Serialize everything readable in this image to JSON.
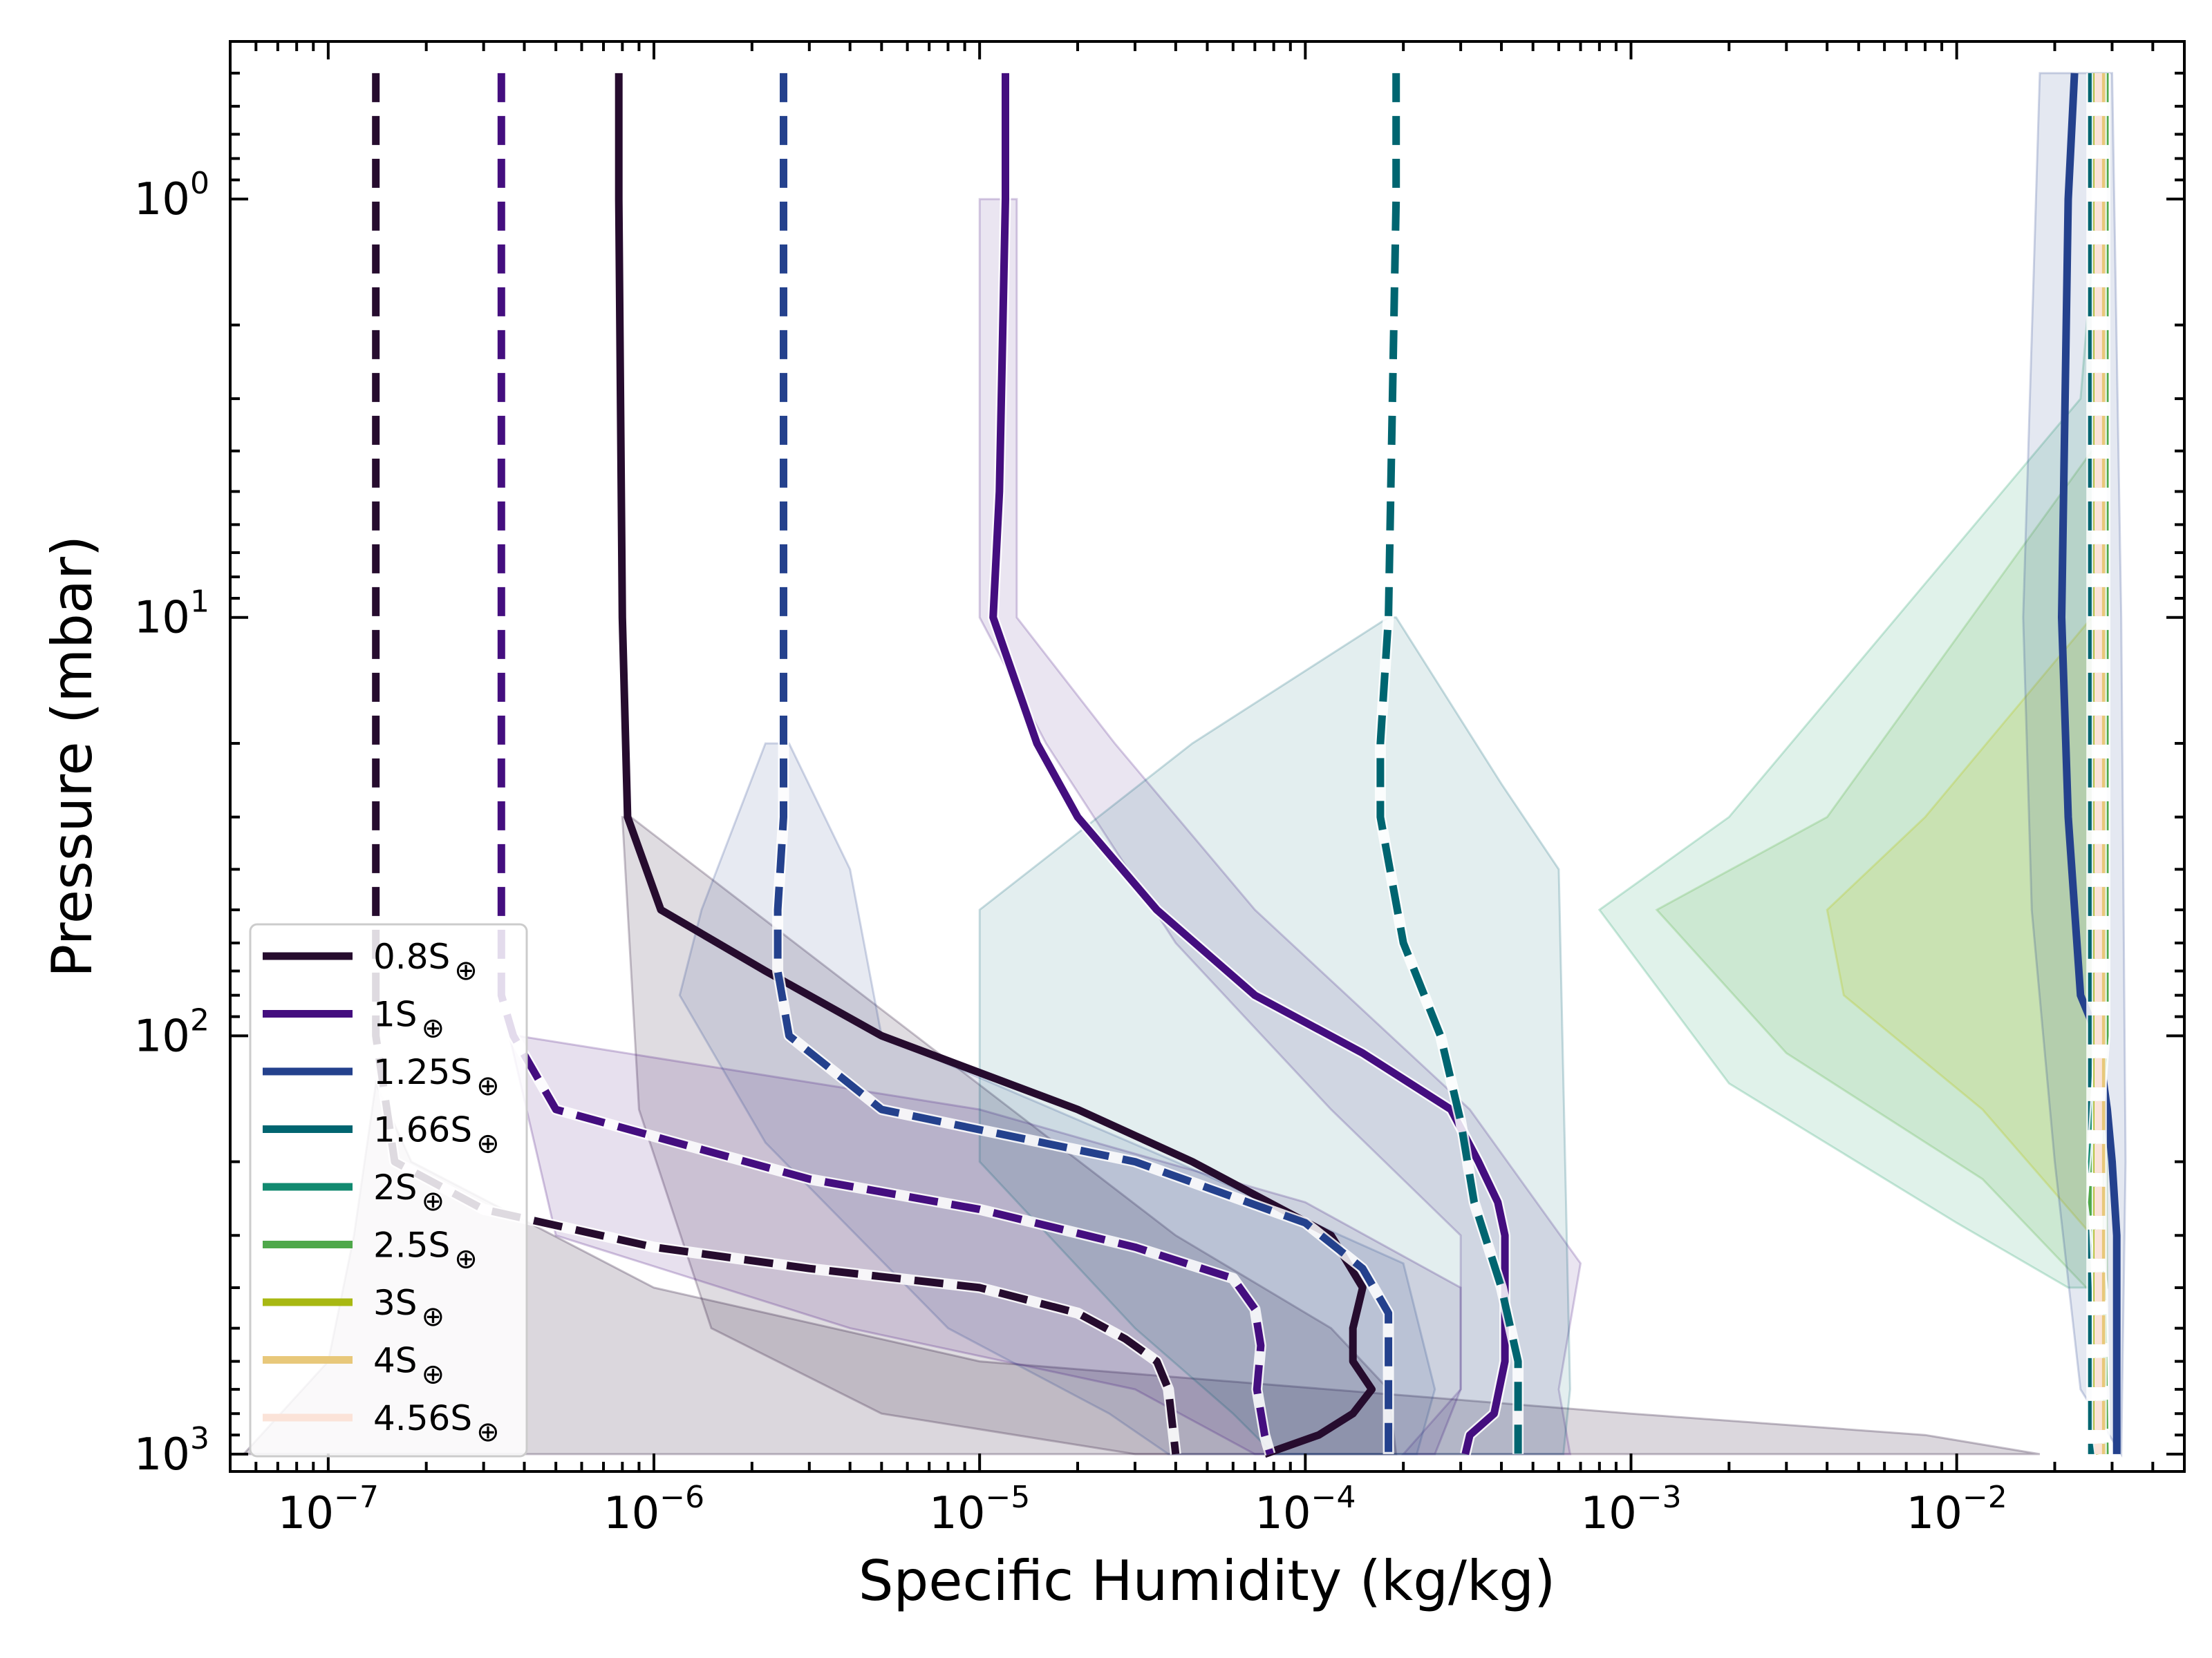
{
  "chart_data": {
    "type": "line",
    "xlabel": "Specific Humidity (kg/kg)",
    "ylabel": "Pressure (mbar)",
    "xscale": "log",
    "yscale": "log",
    "xlim": [
      5e-08,
      0.05
    ],
    "ylim": [
      1100,
      0.42
    ],
    "y_inverted": true,
    "grid": false,
    "legend_position": "lower-left",
    "x_ticks": [
      {
        "base": "10",
        "exp": "−7",
        "value": 1e-07
      },
      {
        "base": "10",
        "exp": "−6",
        "value": 1e-06
      },
      {
        "base": "10",
        "exp": "−5",
        "value": 1e-05
      },
      {
        "base": "10",
        "exp": "−4",
        "value": 0.0001
      },
      {
        "base": "10",
        "exp": "−3",
        "value": 0.001
      },
      {
        "base": "10",
        "exp": "−2",
        "value": 0.01
      }
    ],
    "y_ticks": [
      {
        "base": "10",
        "exp": "0",
        "value": 1
      },
      {
        "base": "10",
        "exp": "1",
        "value": 10
      },
      {
        "base": "10",
        "exp": "2",
        "value": 100
      },
      {
        "base": "10",
        "exp": "3",
        "value": 1000
      }
    ],
    "bands": [
      {
        "color": "#2a1337",
        "opacity": 0.17,
        "left": [
          [
            1.4e-07,
            130
          ],
          [
            1.2e-07,
            300
          ],
          [
            1e-07,
            600
          ],
          [
            5.5e-08,
            1000
          ]
        ],
        "right": [
          [
            1.8e-07,
            200
          ],
          [
            1e-06,
            400
          ],
          [
            1e-05,
            600
          ],
          [
            0.001,
            800
          ],
          [
            0.008,
            900
          ],
          [
            0.018,
            1000
          ]
        ]
      },
      {
        "color": "#2a1337",
        "opacity": 0.15,
        "left": [
          [
            8e-07,
            30
          ],
          [
            9e-07,
            150
          ],
          [
            1.5e-06,
            500
          ],
          [
            5e-06,
            800
          ],
          [
            3e-05,
            1000
          ]
        ],
        "right": [
          [
            8.5e-07,
            30
          ],
          [
            4e-05,
            300
          ],
          [
            0.00012,
            500
          ],
          [
            0.00018,
            700
          ],
          [
            0.00019,
            1000
          ]
        ]
      },
      {
        "color": "#440e7f",
        "opacity": 0.13,
        "left": [
          [
            3.6e-07,
            100
          ],
          [
            5e-07,
            300
          ],
          [
            4e-06,
            500
          ],
          [
            3e-05,
            700
          ],
          [
            7e-05,
            1000
          ]
        ],
        "right": [
          [
            3.8e-07,
            100
          ],
          [
            1e-05,
            150
          ],
          [
            0.0001,
            250
          ],
          [
            0.0003,
            400
          ],
          [
            0.0003,
            700
          ],
          [
            0.00025,
            1000
          ]
        ]
      },
      {
        "color": "#440e7f",
        "opacity": 0.11,
        "left": [
          [
            1e-05,
            1
          ],
          [
            1e-05,
            10
          ],
          [
            1.6e-05,
            20
          ],
          [
            4e-05,
            60
          ],
          [
            0.00012,
            150
          ],
          [
            0.0003,
            300
          ],
          [
            0.0003,
            700
          ],
          [
            0.0002,
            1000
          ]
        ],
        "right": [
          [
            1.3e-05,
            1
          ],
          [
            1.3e-05,
            10
          ],
          [
            2.6e-05,
            20
          ],
          [
            7e-05,
            50
          ],
          [
            0.00032,
            150
          ],
          [
            0.0007,
            350
          ],
          [
            0.0006,
            700
          ],
          [
            0.00065,
            1000
          ]
        ]
      },
      {
        "color": "#24418d",
        "opacity": 0.11,
        "left": [
          [
            2.2e-06,
            20
          ],
          [
            1.4e-06,
            50
          ],
          [
            1.2e-06,
            80
          ],
          [
            2.2e-06,
            180
          ],
          [
            8e-06,
            500
          ],
          [
            2.5e-05,
            800
          ],
          [
            3.8e-05,
            1000
          ]
        ],
        "right": [
          [
            2.6e-06,
            20
          ],
          [
            4e-06,
            40
          ],
          [
            5e-06,
            100
          ],
          [
            4e-05,
            200
          ],
          [
            0.0002,
            350
          ],
          [
            0.00025,
            700
          ],
          [
            0.00022,
            1000
          ]
        ]
      },
      {
        "color": "#006070",
        "opacity": 0.11,
        "left": [
          [
            0.00018,
            10
          ],
          [
            4.5e-05,
            20
          ],
          [
            1e-05,
            50
          ],
          [
            1e-05,
            200
          ],
          [
            3e-05,
            500
          ],
          [
            6e-05,
            800
          ],
          [
            8e-05,
            1000
          ]
        ],
        "right": [
          [
            0.00019,
            10
          ],
          [
            0.0004,
            25
          ],
          [
            0.0006,
            40
          ],
          [
            0.00065,
            700
          ],
          [
            0.00062,
            1000
          ]
        ]
      },
      {
        "color": "#20a06a",
        "opacity": 0.14,
        "left": [
          [
            0.024,
            3
          ],
          [
            0.002,
            30
          ],
          [
            0.0008,
            50
          ],
          [
            0.002,
            130
          ],
          [
            0.01,
            280
          ],
          [
            0.022,
            400
          ]
        ],
        "right": [
          [
            0.027,
            1
          ],
          [
            0.028,
            3
          ],
          [
            0.028,
            400
          ]
        ]
      },
      {
        "color": "#52b040",
        "opacity": 0.14,
        "left": [
          [
            0.026,
            4
          ],
          [
            0.004,
            30
          ],
          [
            0.0012,
            50
          ],
          [
            0.003,
            110
          ],
          [
            0.012,
            220
          ],
          [
            0.025,
            400
          ]
        ],
        "right": [
          [
            0.028,
            4
          ],
          [
            0.029,
            400
          ]
        ]
      },
      {
        "color": "#b9c400",
        "opacity": 0.15,
        "left": [
          [
            0.026,
            10
          ],
          [
            0.008,
            30
          ],
          [
            0.004,
            50
          ],
          [
            0.0045,
            80
          ],
          [
            0.012,
            150
          ],
          [
            0.026,
            300
          ]
        ],
        "right": [
          [
            0.028,
            10
          ],
          [
            0.028,
            300
          ]
        ]
      },
      {
        "color": "#24418d",
        "opacity": 0.12,
        "left": [
          [
            0.018,
            0.5
          ],
          [
            0.016,
            10
          ],
          [
            0.017,
            50
          ],
          [
            0.02,
            200
          ],
          [
            0.024,
            700
          ]
        ],
        "right": [
          [
            0.03,
            0.5
          ],
          [
            0.032,
            10
          ],
          [
            0.033,
            200
          ],
          [
            0.032,
            1000
          ]
        ]
      }
    ],
    "series": [
      {
        "name": "0.8S",
        "color": "#260c2e",
        "style": "solid",
        "halo": false,
        "points": [
          [
            7.8e-07,
            0.5
          ],
          [
            7.8e-07,
            1
          ],
          [
            8e-07,
            10
          ],
          [
            8.3e-07,
            30
          ],
          [
            1.05e-06,
            50
          ],
          [
            2.2e-06,
            70
          ],
          [
            5e-06,
            100
          ],
          [
            2e-05,
            150
          ],
          [
            4.5e-05,
            200
          ],
          [
            0.00012,
            300
          ],
          [
            0.00015,
            400
          ],
          [
            0.00014,
            500
          ],
          [
            0.00014,
            600
          ],
          [
            0.00016,
            700
          ],
          [
            0.00014,
            800
          ],
          [
            0.00011,
            900
          ],
          [
            7.5e-05,
            1000
          ]
        ]
      },
      {
        "name": "0.8S",
        "color": "#260c2e",
        "style": "dashed",
        "halo": true,
        "points": [
          [
            1.4e-07,
            0.5
          ],
          [
            1.4e-07,
            10
          ],
          [
            1.4e-07,
            100
          ],
          [
            1.6e-07,
            200
          ],
          [
            3e-07,
            260
          ],
          [
            1e-06,
            320
          ],
          [
            3e-06,
            360
          ],
          [
            1e-05,
            400
          ],
          [
            2e-05,
            460
          ],
          [
            2.8e-05,
            530
          ],
          [
            3.5e-05,
            600
          ],
          [
            3.8e-05,
            700
          ],
          [
            4e-05,
            1000
          ]
        ]
      },
      {
        "name": "1S",
        "color": "#440e7f",
        "style": "solid",
        "halo": true,
        "points": [
          [
            1.2e-05,
            0.5
          ],
          [
            1.2e-05,
            1
          ],
          [
            1.15e-05,
            5
          ],
          [
            1.1e-05,
            10
          ],
          [
            1.5e-05,
            20
          ],
          [
            2e-05,
            30
          ],
          [
            3.5e-05,
            50
          ],
          [
            7e-05,
            80
          ],
          [
            0.00015,
            110
          ],
          [
            0.00028,
            150
          ],
          [
            0.00034,
            200
          ],
          [
            0.00039,
            250
          ],
          [
            0.00041,
            300
          ],
          [
            0.00041,
            600
          ],
          [
            0.00038,
            800
          ],
          [
            0.00032,
            900
          ],
          [
            0.00031,
            1000
          ]
        ]
      },
      {
        "name": "1S",
        "color": "#440e7f",
        "style": "dashed",
        "halo": true,
        "points": [
          [
            3.4e-07,
            0.5
          ],
          [
            3.4e-07,
            10
          ],
          [
            3.4e-07,
            80
          ],
          [
            3.7e-07,
            100
          ],
          [
            5e-07,
            150
          ],
          [
            3e-06,
            220
          ],
          [
            1e-05,
            260
          ],
          [
            3e-05,
            320
          ],
          [
            6e-05,
            380
          ],
          [
            7e-05,
            450
          ],
          [
            7.3e-05,
            550
          ],
          [
            7.1e-05,
            700
          ],
          [
            7.5e-05,
            900
          ],
          [
            7.8e-05,
            1000
          ]
        ]
      },
      {
        "name": "1.25S",
        "color": "#24418d",
        "style": "dashed",
        "halo": true,
        "points": [
          [
            2.5e-06,
            0.5
          ],
          [
            2.5e-06,
            10
          ],
          [
            2.5e-06,
            30
          ],
          [
            2.4e-06,
            50
          ],
          [
            2.4e-06,
            70
          ],
          [
            2.6e-06,
            100
          ],
          [
            5e-06,
            150
          ],
          [
            3e-05,
            200
          ],
          [
            0.0001,
            280
          ],
          [
            0.00015,
            360
          ],
          [
            0.00018,
            460
          ],
          [
            0.00018,
            700
          ],
          [
            0.00018,
            1000
          ]
        ]
      },
      {
        "name": "1.25S",
        "color": "#24418d",
        "style": "solid",
        "halo": false,
        "points": [
          [
            0.023,
            0.5
          ],
          [
            0.022,
            1
          ],
          [
            0.021,
            10
          ],
          [
            0.022,
            30
          ],
          [
            0.024,
            80
          ],
          [
            0.027,
            100
          ],
          [
            0.029,
            150
          ],
          [
            0.03,
            200
          ],
          [
            0.031,
            300
          ],
          [
            0.031,
            1000
          ]
        ]
      },
      {
        "name": "1.66S",
        "color": "#006570",
        "style": "dashed",
        "halo": true,
        "points": [
          [
            0.00019,
            0.5
          ],
          [
            0.00019,
            1
          ],
          [
            0.00018,
            10
          ],
          [
            0.00017,
            20
          ],
          [
            0.00017,
            30
          ],
          [
            0.0002,
            60
          ],
          [
            0.00026,
            100
          ],
          [
            0.0003,
            160
          ],
          [
            0.00033,
            250
          ],
          [
            0.0004,
            400
          ],
          [
            0.00045,
            600
          ],
          [
            0.00045,
            1000
          ]
        ]
      },
      {
        "name": "1.66S",
        "color": "#006570",
        "style": "dashed",
        "halo": true,
        "points": [
          [
            0.026,
            0.5
          ],
          [
            0.026,
            1000
          ]
        ]
      },
      {
        "name": "2S",
        "color": "#128a70",
        "style": "dashed",
        "halo": true,
        "points": [
          [
            0.0275,
            0.5
          ],
          [
            0.0275,
            100
          ],
          [
            0.026,
            200
          ],
          [
            0.027,
            400
          ],
          [
            0.0275,
            1000
          ]
        ]
      },
      {
        "name": "2.5S",
        "color": "#4ea84a",
        "style": "dashed",
        "halo": true,
        "points": [
          [
            0.0285,
            0.5
          ],
          [
            0.0285,
            100
          ],
          [
            0.026,
            250
          ],
          [
            0.028,
            400
          ],
          [
            0.0285,
            1000
          ]
        ]
      },
      {
        "name": "3S",
        "color": "#a8b812",
        "style": "dashed",
        "halo": true,
        "points": [
          [
            0.027,
            0.5
          ],
          [
            0.027,
            900
          ],
          [
            0.0275,
            1000
          ]
        ]
      },
      {
        "name": "4S",
        "color": "#e8c87a",
        "style": "dashed",
        "halo": true,
        "points": [
          [
            0.0278,
            0.5
          ],
          [
            0.0278,
            1000
          ]
        ]
      },
      {
        "name": "4.56S",
        "color": "#fbe3d8",
        "style": "dashed",
        "halo": false,
        "points": [
          [
            0.0272,
            0.5
          ],
          [
            0.0272,
            1000
          ]
        ]
      }
    ],
    "legend": [
      {
        "label": "0.8S",
        "sub": "⊕",
        "color": "#260c2e"
      },
      {
        "label": "1S",
        "sub": "⊕",
        "color": "#440e7f"
      },
      {
        "label": "1.25S",
        "sub": "⊕",
        "color": "#24418d"
      },
      {
        "label": "1.66S",
        "sub": "⊕",
        "color": "#006570"
      },
      {
        "label": "2S",
        "sub": "⊕",
        "color": "#128a70"
      },
      {
        "label": "2.5S",
        "sub": "⊕",
        "color": "#4ea84a"
      },
      {
        "label": "3S",
        "sub": "⊕",
        "color": "#a8b812"
      },
      {
        "label": "4S",
        "sub": "⊕",
        "color": "#e8c87a"
      },
      {
        "label": "4.56S",
        "sub": "⊕",
        "color": "#fbe3d8"
      }
    ]
  }
}
